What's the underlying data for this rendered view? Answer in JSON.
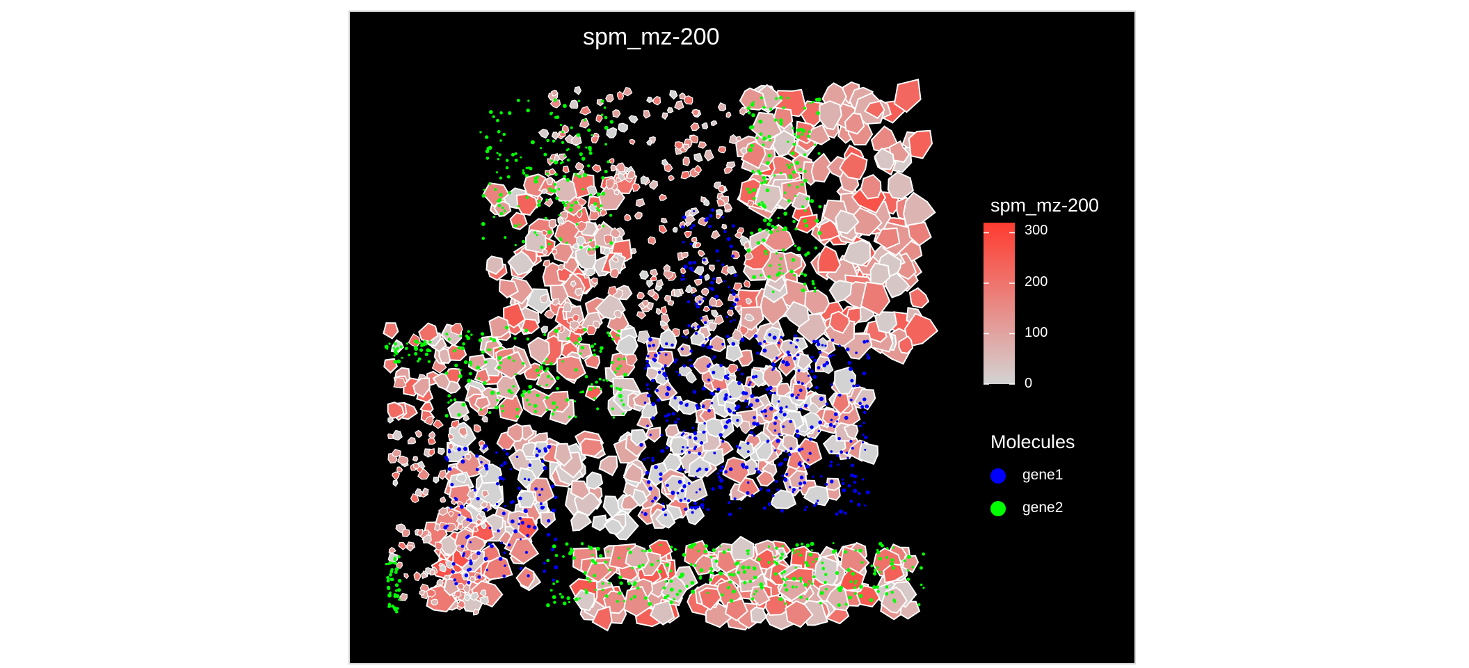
{
  "chart_data": {
    "type": "scatter",
    "title": "spm_mz-200",
    "description_kind": "spatial cell polygons colored by intensity with molecule points",
    "colorbar": {
      "title": "spm_mz-200",
      "ticks": [
        0,
        100,
        200,
        300
      ],
      "range": [
        0,
        320
      ],
      "low_color": "#d3d3d3",
      "high_color": "#ff3b30"
    },
    "legend": {
      "title": "Molecules",
      "placement": "right",
      "items": [
        {
          "label": "gene1",
          "color": "#0000ff"
        },
        {
          "label": "gene2",
          "color": "#00ff00"
        }
      ]
    },
    "background_color": "#000000",
    "polygon_outline_color": "#ffffff",
    "grid": false,
    "axes_visible": false
  }
}
